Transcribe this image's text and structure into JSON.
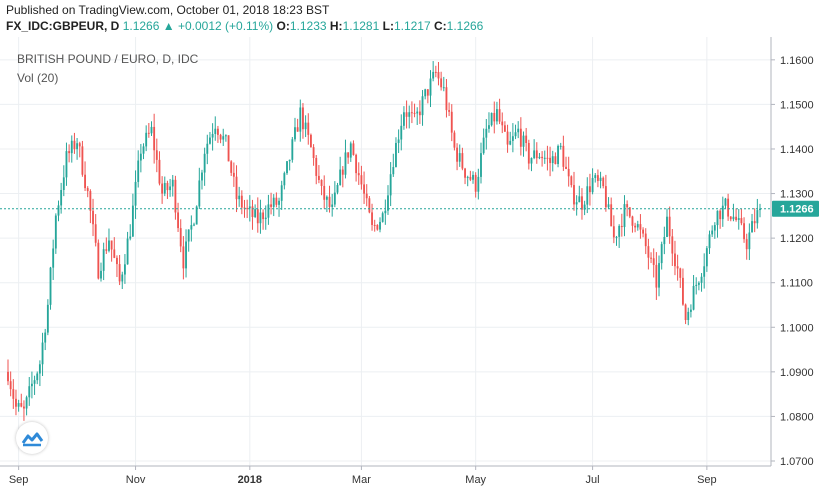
{
  "header": {
    "published": "Published on TradingView.com, October 01, 2018 18:23 BST",
    "symbol": "FX_IDC:GBPEUR, D",
    "last": "1.1266",
    "change": "+0.0012 (+0.11%)",
    "open_label": "O:",
    "open": "1.1233",
    "high_label": "H:",
    "high": "1.1281",
    "low_label": "L:",
    "low": "1.1217",
    "close_label": "C:",
    "close": "1.1266"
  },
  "colors": {
    "up": "#26a69a",
    "down": "#ef5350",
    "grid": "#eceff2",
    "last_line": "#26a69a"
  },
  "icons": {
    "change_arrow": "triangle-up-icon",
    "logo": "tradingview-logo-icon"
  },
  "chart_data": {
    "type": "candlestick",
    "title": "BRITISH POUND / EURO, D, IDC",
    "indicator": "Vol (20)",
    "x_axis": {
      "labels": [
        {
          "text": "Sep",
          "bold": false,
          "index": 4
        },
        {
          "text": "Nov",
          "bold": false,
          "index": 48
        },
        {
          "text": "2018",
          "bold": true,
          "index": 91
        },
        {
          "text": "Mar",
          "bold": false,
          "index": 133
        },
        {
          "text": "May",
          "bold": false,
          "index": 176
        },
        {
          "text": "Jul",
          "bold": false,
          "index": 220
        },
        {
          "text": "Sep",
          "bold": false,
          "index": 263
        }
      ]
    },
    "y_axis": {
      "ylim": [
        1.07,
        1.164
      ],
      "ticks": [
        "1.0700",
        "1.0800",
        "1.0900",
        "1.1000",
        "1.1100",
        "1.1200",
        "1.1300",
        "1.1400",
        "1.1500",
        "1.1600"
      ],
      "last_price": "1.1266",
      "last_value": 1.1266
    },
    "bar_count": 284,
    "anchors": [
      [
        0,
        1.09
      ],
      [
        3,
        1.082
      ],
      [
        6,
        1.081
      ],
      [
        9,
        1.087
      ],
      [
        12,
        1.092
      ],
      [
        15,
        1.105
      ],
      [
        18,
        1.125
      ],
      [
        22,
        1.138
      ],
      [
        26,
        1.142
      ],
      [
        30,
        1.13
      ],
      [
        34,
        1.113
      ],
      [
        38,
        1.12
      ],
      [
        42,
        1.11
      ],
      [
        46,
        1.122
      ],
      [
        50,
        1.14
      ],
      [
        54,
        1.144
      ],
      [
        58,
        1.13
      ],
      [
        62,
        1.132
      ],
      [
        66,
        1.115
      ],
      [
        70,
        1.125
      ],
      [
        74,
        1.14
      ],
      [
        78,
        1.146
      ],
      [
        82,
        1.141
      ],
      [
        86,
        1.129
      ],
      [
        90,
        1.126
      ],
      [
        94,
        1.124
      ],
      [
        98,
        1.127
      ],
      [
        102,
        1.128
      ],
      [
        106,
        1.138
      ],
      [
        110,
        1.148
      ],
      [
        114,
        1.14
      ],
      [
        118,
        1.13
      ],
      [
        122,
        1.126
      ],
      [
        126,
        1.136
      ],
      [
        129,
        1.141
      ],
      [
        133,
        1.132
      ],
      [
        137,
        1.122
      ],
      [
        141,
        1.125
      ],
      [
        145,
        1.138
      ],
      [
        149,
        1.149
      ],
      [
        153,
        1.146
      ],
      [
        157,
        1.152
      ],
      [
        161,
        1.157
      ],
      [
        164,
        1.153
      ],
      [
        168,
        1.14
      ],
      [
        172,
        1.135
      ],
      [
        176,
        1.132
      ],
      [
        180,
        1.144
      ],
      [
        184,
        1.148
      ],
      [
        188,
        1.14
      ],
      [
        192,
        1.144
      ],
      [
        196,
        1.138
      ],
      [
        200,
        1.139
      ],
      [
        204,
        1.137
      ],
      [
        208,
        1.14
      ],
      [
        212,
        1.13
      ],
      [
        216,
        1.128
      ],
      [
        220,
        1.133
      ],
      [
        224,
        1.131
      ],
      [
        228,
        1.12
      ],
      [
        232,
        1.126
      ],
      [
        236,
        1.124
      ],
      [
        240,
        1.118
      ],
      [
        244,
        1.11
      ],
      [
        248,
        1.124
      ],
      [
        252,
        1.113
      ],
      [
        255,
        1.102
      ],
      [
        258,
        1.108
      ],
      [
        262,
        1.115
      ],
      [
        266,
        1.125
      ],
      [
        270,
        1.127
      ],
      [
        274,
        1.124
      ],
      [
        278,
        1.119
      ],
      [
        281,
        1.124
      ],
      [
        283,
        1.1266
      ]
    ]
  }
}
